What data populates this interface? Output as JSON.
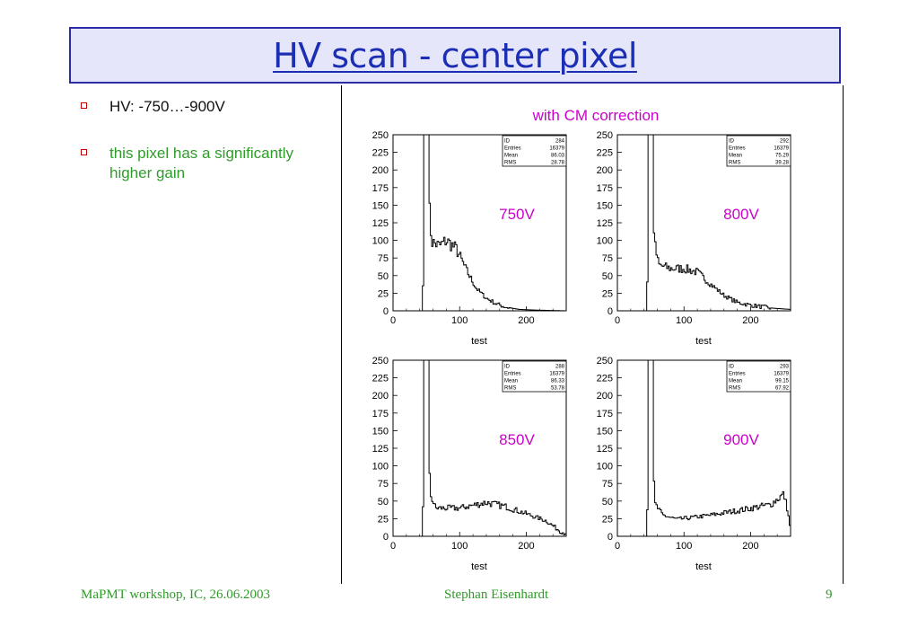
{
  "slide": {
    "title": "HV scan - center pixel",
    "bullets": [
      {
        "text": "HV: -750…-900V",
        "color": "#111111"
      },
      {
        "text": "this pixel has a significantly higher gain",
        "color": "#2f9c2a"
      }
    ],
    "plot_caption": "with CM correction",
    "footer": {
      "left": "MaPMT workshop, IC, 26.06.2003",
      "center": "Stephan Eisenhardt",
      "page": "9"
    }
  },
  "colors": {
    "title_text": "#1c2fb4",
    "title_bg": "#e6e6fa",
    "label_magenta": "#cc00cc",
    "footer_green": "#2f9c2a",
    "bullet_marker": "#c00000"
  },
  "chart_data": [
    {
      "type": "histogram",
      "label": "750V",
      "xlabel": "test",
      "xlim": [
        0,
        260
      ],
      "ylim": [
        0,
        250
      ],
      "xticks": [
        0,
        100,
        200
      ],
      "yticks": [
        0,
        25,
        50,
        75,
        100,
        125,
        150,
        175,
        200,
        225,
        250
      ],
      "stats": [
        {
          "key": "ID",
          "value": "284"
        },
        {
          "key": "Entries",
          "value": "16379"
        },
        {
          "key": "Mean",
          "value": "86.03"
        },
        {
          "key": "RMS",
          "value": "28.78"
        }
      ],
      "profile": [
        [
          0,
          0
        ],
        [
          44,
          0
        ],
        [
          45,
          40
        ],
        [
          46,
          250
        ],
        [
          50,
          250
        ],
        [
          53,
          250
        ],
        [
          54,
          165
        ],
        [
          55,
          140
        ],
        [
          58,
          98
        ],
        [
          70,
          92
        ],
        [
          80,
          100
        ],
        [
          95,
          88
        ],
        [
          110,
          58
        ],
        [
          125,
          32
        ],
        [
          140,
          18
        ],
        [
          155,
          10
        ],
        [
          170,
          5
        ],
        [
          190,
          2
        ],
        [
          215,
          1
        ],
        [
          260,
          0
        ]
      ]
    },
    {
      "type": "histogram",
      "label": "800V",
      "xlabel": "test",
      "xlim": [
        0,
        260
      ],
      "ylim": [
        0,
        250
      ],
      "xticks": [
        0,
        100,
        200
      ],
      "yticks": [
        0,
        25,
        50,
        75,
        100,
        125,
        150,
        175,
        200,
        225,
        250
      ],
      "stats": [
        {
          "key": "ID",
          "value": "292"
        },
        {
          "key": "Entries",
          "value": "16379"
        },
        {
          "key": "Mean",
          "value": "75.29"
        },
        {
          "key": "RMS",
          "value": "39.28"
        }
      ],
      "profile": [
        [
          0,
          0
        ],
        [
          44,
          0
        ],
        [
          45,
          40
        ],
        [
          46,
          250
        ],
        [
          50,
          250
        ],
        [
          53,
          250
        ],
        [
          54,
          140
        ],
        [
          56,
          95
        ],
        [
          62,
          65
        ],
        [
          80,
          60
        ],
        [
          100,
          60
        ],
        [
          120,
          55
        ],
        [
          140,
          38
        ],
        [
          160,
          22
        ],
        [
          180,
          12
        ],
        [
          200,
          8
        ],
        [
          230,
          4
        ],
        [
          260,
          2
        ]
      ]
    },
    {
      "type": "histogram",
      "label": "850V",
      "xlabel": "test",
      "xlim": [
        0,
        260
      ],
      "ylim": [
        0,
        250
      ],
      "xticks": [
        0,
        100,
        200
      ],
      "yticks": [
        0,
        25,
        50,
        75,
        100,
        125,
        150,
        175,
        200,
        225,
        250
      ],
      "stats": [
        {
          "key": "ID",
          "value": "288"
        },
        {
          "key": "Entries",
          "value": "16379"
        },
        {
          "key": "Mean",
          "value": "86.33"
        },
        {
          "key": "RMS",
          "value": "53.78"
        }
      ],
      "profile": [
        [
          0,
          0
        ],
        [
          44,
          0
        ],
        [
          45,
          40
        ],
        [
          46,
          250
        ],
        [
          50,
          250
        ],
        [
          53,
          250
        ],
        [
          54,
          105
        ],
        [
          56,
          60
        ],
        [
          64,
          40
        ],
        [
          100,
          40
        ],
        [
          140,
          48
        ],
        [
          170,
          42
        ],
        [
          200,
          32
        ],
        [
          230,
          22
        ],
        [
          250,
          8
        ],
        [
          260,
          3
        ]
      ]
    },
    {
      "type": "histogram",
      "label": "900V",
      "xlabel": "test",
      "xlim": [
        0,
        260
      ],
      "ylim": [
        0,
        250
      ],
      "xticks": [
        0,
        100,
        200
      ],
      "yticks": [
        0,
        25,
        50,
        75,
        100,
        125,
        150,
        175,
        200,
        225,
        250
      ],
      "stats": [
        {
          "key": "ID",
          "value": "293"
        },
        {
          "key": "Entries",
          "value": "16379"
        },
        {
          "key": "Mean",
          "value": "99.15"
        },
        {
          "key": "RMS",
          "value": "67.92"
        }
      ],
      "profile": [
        [
          0,
          0
        ],
        [
          44,
          0
        ],
        [
          45,
          40
        ],
        [
          46,
          250
        ],
        [
          50,
          250
        ],
        [
          53,
          250
        ],
        [
          54,
          85
        ],
        [
          57,
          45
        ],
        [
          68,
          30
        ],
        [
          90,
          24
        ],
        [
          140,
          30
        ],
        [
          190,
          38
        ],
        [
          230,
          45
        ],
        [
          250,
          60
        ],
        [
          255,
          40
        ],
        [
          260,
          10
        ]
      ]
    }
  ]
}
